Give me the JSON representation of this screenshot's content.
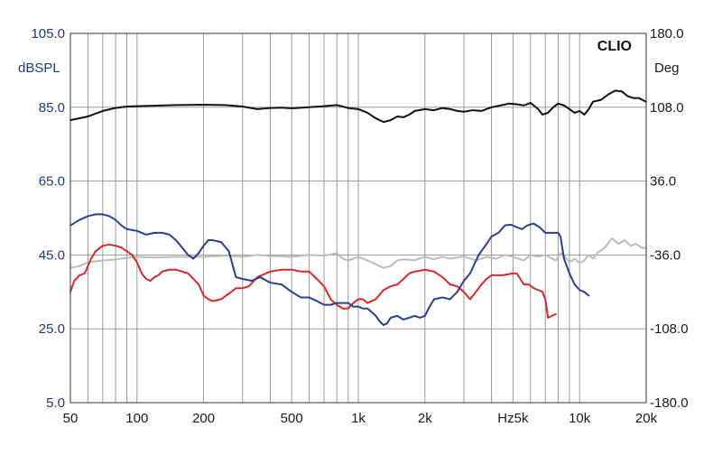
{
  "chart_data": {
    "type": "line",
    "brand": "CLIO",
    "xscale": "log",
    "xlim": [
      50,
      20000
    ],
    "x_tick_values": [
      50,
      100,
      200,
      500,
      1000,
      2000,
      5000,
      10000,
      20000
    ],
    "x_tick_labels": [
      "50",
      "100",
      "200",
      "500",
      "1k",
      "2k",
      "Hz5k",
      "10k",
      "20k"
    ],
    "y_left": {
      "label": "dBSPL",
      "lim": [
        5,
        105
      ],
      "ticks": [
        105,
        85,
        65,
        45,
        25,
        5
      ],
      "tick_labels": [
        "105.0",
        "85.0",
        "65.0",
        "45.0",
        "25.0",
        "5.0"
      ]
    },
    "y_right": {
      "label": "Deg",
      "lim": [
        -180,
        180
      ],
      "ticks": [
        180,
        108,
        36,
        -36,
        -108,
        -180
      ],
      "tick_labels": [
        "180.0",
        "108.0",
        "36.0",
        "-36.0",
        "-108.0",
        "-180.0"
      ]
    },
    "grid": true,
    "colors": {
      "frame": "#555555",
      "grid": "#8f8f8f",
      "left_axis_text": "#1f3a78",
      "right_axis_text": "#1a1a1a"
    },
    "series": [
      {
        "color": "#111111",
        "axis": "left",
        "points": [
          [
            50,
            81.5
          ],
          [
            60,
            82.5
          ],
          [
            70,
            84
          ],
          [
            80,
            84.8
          ],
          [
            90,
            85.2
          ],
          [
            100,
            85.3
          ],
          [
            150,
            85.6
          ],
          [
            200,
            85.7
          ],
          [
            250,
            85.6
          ],
          [
            300,
            85.2
          ],
          [
            350,
            84.5
          ],
          [
            400,
            84.8
          ],
          [
            450,
            84.9
          ],
          [
            500,
            84.7
          ],
          [
            600,
            85
          ],
          [
            700,
            85.3
          ],
          [
            800,
            85.6
          ],
          [
            900,
            84.8
          ],
          [
            1000,
            84.5
          ],
          [
            1100,
            83.5
          ],
          [
            1200,
            82
          ],
          [
            1300,
            81
          ],
          [
            1400,
            81.5
          ],
          [
            1500,
            82.5
          ],
          [
            1600,
            82.3
          ],
          [
            1700,
            83
          ],
          [
            1800,
            84
          ],
          [
            2000,
            84.5
          ],
          [
            2200,
            84.2
          ],
          [
            2400,
            84.8
          ],
          [
            2600,
            84.5
          ],
          [
            2800,
            84
          ],
          [
            3000,
            83.8
          ],
          [
            3300,
            84.2
          ],
          [
            3600,
            84
          ],
          [
            4000,
            85
          ],
          [
            4400,
            85.5
          ],
          [
            4800,
            86
          ],
          [
            5200,
            85.8
          ],
          [
            5600,
            85.5
          ],
          [
            6000,
            86.2
          ],
          [
            6500,
            84.5
          ],
          [
            6800,
            83
          ],
          [
            7200,
            83.5
          ],
          [
            7600,
            85
          ],
          [
            8000,
            86
          ],
          [
            8500,
            85.5
          ],
          [
            9000,
            84.5
          ],
          [
            9500,
            83.5
          ],
          [
            10000,
            84
          ],
          [
            10500,
            83
          ],
          [
            11000,
            84.5
          ],
          [
            11500,
            86.5
          ],
          [
            12500,
            87
          ],
          [
            13500,
            88.5
          ],
          [
            14500,
            89.5
          ],
          [
            15500,
            89.3
          ],
          [
            16500,
            88
          ],
          [
            17500,
            87.5
          ],
          [
            18500,
            87.5
          ],
          [
            20000,
            86.5
          ]
        ]
      },
      {
        "color": "#2b3f8f",
        "axis": "left",
        "points": [
          [
            50,
            53
          ],
          [
            55,
            54.5
          ],
          [
            60,
            55.5
          ],
          [
            65,
            56
          ],
          [
            70,
            56
          ],
          [
            75,
            55.5
          ],
          [
            80,
            54.5
          ],
          [
            85,
            53
          ],
          [
            90,
            52
          ],
          [
            100,
            51.5
          ],
          [
            110,
            50.5
          ],
          [
            120,
            51
          ],
          [
            130,
            51
          ],
          [
            140,
            50.5
          ],
          [
            150,
            49
          ],
          [
            160,
            47
          ],
          [
            170,
            45
          ],
          [
            180,
            44
          ],
          [
            190,
            45.5
          ],
          [
            200,
            47.5
          ],
          [
            210,
            49
          ],
          [
            220,
            49
          ],
          [
            240,
            48.5
          ],
          [
            260,
            46
          ],
          [
            280,
            39
          ],
          [
            300,
            38.5
          ],
          [
            330,
            38
          ],
          [
            360,
            39
          ],
          [
            400,
            37.5
          ],
          [
            450,
            37
          ],
          [
            500,
            35
          ],
          [
            550,
            33.5
          ],
          [
            600,
            33.5
          ],
          [
            650,
            32.5
          ],
          [
            700,
            31.5
          ],
          [
            750,
            31.5
          ],
          [
            800,
            32
          ],
          [
            850,
            32
          ],
          [
            900,
            32
          ],
          [
            950,
            31
          ],
          [
            1000,
            31
          ],
          [
            1050,
            30.5
          ],
          [
            1100,
            30.5
          ],
          [
            1150,
            29.5
          ],
          [
            1200,
            28.5
          ],
          [
            1250,
            27
          ],
          [
            1300,
            26
          ],
          [
            1350,
            26.5
          ],
          [
            1400,
            28
          ],
          [
            1500,
            28.5
          ],
          [
            1600,
            27.5
          ],
          [
            1700,
            28
          ],
          [
            1800,
            28.5
          ],
          [
            1900,
            28
          ],
          [
            2000,
            28.5
          ],
          [
            2100,
            31
          ],
          [
            2200,
            33
          ],
          [
            2400,
            33.5
          ],
          [
            2600,
            33
          ],
          [
            2800,
            35
          ],
          [
            3000,
            38
          ],
          [
            3200,
            40
          ],
          [
            3500,
            45
          ],
          [
            3800,
            48
          ],
          [
            4000,
            50
          ],
          [
            4300,
            51
          ],
          [
            4600,
            53
          ],
          [
            4900,
            53.2
          ],
          [
            5200,
            52.5
          ],
          [
            5500,
            52
          ],
          [
            5800,
            53
          ],
          [
            6200,
            53.5
          ],
          [
            6600,
            52.5
          ],
          [
            7000,
            51
          ],
          [
            7500,
            51
          ],
          [
            8000,
            51
          ],
          [
            8200,
            50
          ],
          [
            8500,
            44
          ],
          [
            9000,
            40
          ],
          [
            9500,
            37
          ],
          [
            10000,
            35.5
          ],
          [
            10500,
            35
          ],
          [
            11000,
            34
          ]
        ]
      },
      {
        "color": "#d42a2a",
        "axis": "left",
        "points": [
          [
            50,
            35
          ],
          [
            52,
            38
          ],
          [
            55,
            39.5
          ],
          [
            58,
            40
          ],
          [
            60,
            42
          ],
          [
            62,
            44
          ],
          [
            65,
            46
          ],
          [
            70,
            47.5
          ],
          [
            75,
            47.8
          ],
          [
            80,
            47.5
          ],
          [
            85,
            47
          ],
          [
            90,
            46
          ],
          [
            95,
            45
          ],
          [
            100,
            43
          ],
          [
            105,
            40
          ],
          [
            110,
            38.5
          ],
          [
            115,
            38
          ],
          [
            120,
            39
          ],
          [
            125,
            39.5
          ],
          [
            130,
            40.5
          ],
          [
            140,
            41
          ],
          [
            150,
            41
          ],
          [
            160,
            40.5
          ],
          [
            170,
            40
          ],
          [
            180,
            38.5
          ],
          [
            190,
            37
          ],
          [
            200,
            34
          ],
          [
            210,
            33
          ],
          [
            220,
            32.5
          ],
          [
            240,
            33
          ],
          [
            260,
            34.5
          ],
          [
            280,
            36
          ],
          [
            300,
            36
          ],
          [
            320,
            36.5
          ],
          [
            350,
            39
          ],
          [
            400,
            40.5
          ],
          [
            450,
            41
          ],
          [
            500,
            41
          ],
          [
            550,
            40.5
          ],
          [
            600,
            40.5
          ],
          [
            650,
            38.5
          ],
          [
            700,
            36.5
          ],
          [
            750,
            33
          ],
          [
            800,
            31.5
          ],
          [
            850,
            30.5
          ],
          [
            900,
            30.5
          ],
          [
            950,
            32
          ],
          [
            1000,
            33
          ],
          [
            1050,
            33
          ],
          [
            1100,
            32
          ],
          [
            1150,
            32.5
          ],
          [
            1200,
            33
          ],
          [
            1300,
            35.5
          ],
          [
            1400,
            36.5
          ],
          [
            1500,
            37
          ],
          [
            1600,
            38.5
          ],
          [
            1700,
            40
          ],
          [
            1800,
            40.5
          ],
          [
            2000,
            41
          ],
          [
            2200,
            40.5
          ],
          [
            2400,
            39
          ],
          [
            2600,
            37
          ],
          [
            2800,
            36.5
          ],
          [
            3000,
            35
          ],
          [
            3200,
            33
          ],
          [
            3400,
            35
          ],
          [
            3600,
            37
          ],
          [
            3800,
            38.5
          ],
          [
            4000,
            39.5
          ],
          [
            4500,
            39.5
          ],
          [
            5000,
            40
          ],
          [
            5200,
            40
          ],
          [
            5400,
            38.5
          ],
          [
            5600,
            37
          ],
          [
            5900,
            37
          ],
          [
            6200,
            36
          ],
          [
            6500,
            35.5
          ],
          [
            6800,
            35
          ],
          [
            7000,
            33
          ],
          [
            7200,
            28
          ],
          [
            7500,
            28.5
          ],
          [
            7800,
            29
          ]
        ]
      },
      {
        "color": "#bcbcbc",
        "axis": "left",
        "points": [
          [
            50,
            41.5
          ],
          [
            55,
            42
          ],
          [
            60,
            43
          ],
          [
            70,
            43.5
          ],
          [
            80,
            43.8
          ],
          [
            90,
            44.2
          ],
          [
            100,
            44.5
          ],
          [
            120,
            44.3
          ],
          [
            150,
            44.5
          ],
          [
            200,
            44.5
          ],
          [
            250,
            44.8
          ],
          [
            300,
            44.5
          ],
          [
            350,
            45
          ],
          [
            400,
            44.7
          ],
          [
            500,
            44.5
          ],
          [
            600,
            45
          ],
          [
            700,
            44.8
          ],
          [
            800,
            45.5
          ],
          [
            850,
            44
          ],
          [
            900,
            43.5
          ],
          [
            950,
            44
          ],
          [
            1000,
            44.5
          ],
          [
            1100,
            43.5
          ],
          [
            1200,
            42.5
          ],
          [
            1300,
            41.5
          ],
          [
            1400,
            42
          ],
          [
            1500,
            43.5
          ],
          [
            1600,
            43.8
          ],
          [
            1800,
            43.6
          ],
          [
            2000,
            44.5
          ],
          [
            2200,
            43.8
          ],
          [
            2400,
            44.5
          ],
          [
            2600,
            44
          ],
          [
            2800,
            44.3
          ],
          [
            3000,
            44.6
          ],
          [
            3400,
            43.5
          ],
          [
            3800,
            44.5
          ],
          [
            4200,
            44
          ],
          [
            4600,
            45
          ],
          [
            5000,
            44.5
          ],
          [
            5600,
            43.5
          ],
          [
            6000,
            45
          ],
          [
            6500,
            44.5
          ],
          [
            7000,
            45
          ],
          [
            7500,
            44
          ],
          [
            7800,
            43.5
          ],
          [
            8200,
            45.5
          ],
          [
            8600,
            44.5
          ],
          [
            9000,
            43
          ],
          [
            9500,
            44
          ],
          [
            10000,
            42.8
          ],
          [
            10500,
            43.5
          ],
          [
            11000,
            45
          ],
          [
            11500,
            44
          ],
          [
            12000,
            45.5
          ],
          [
            13000,
            47
          ],
          [
            14000,
            49.5
          ],
          [
            15000,
            48
          ],
          [
            16000,
            49
          ],
          [
            17000,
            47.5
          ],
          [
            18000,
            48
          ],
          [
            19000,
            47
          ],
          [
            20000,
            46.8
          ]
        ]
      }
    ]
  }
}
